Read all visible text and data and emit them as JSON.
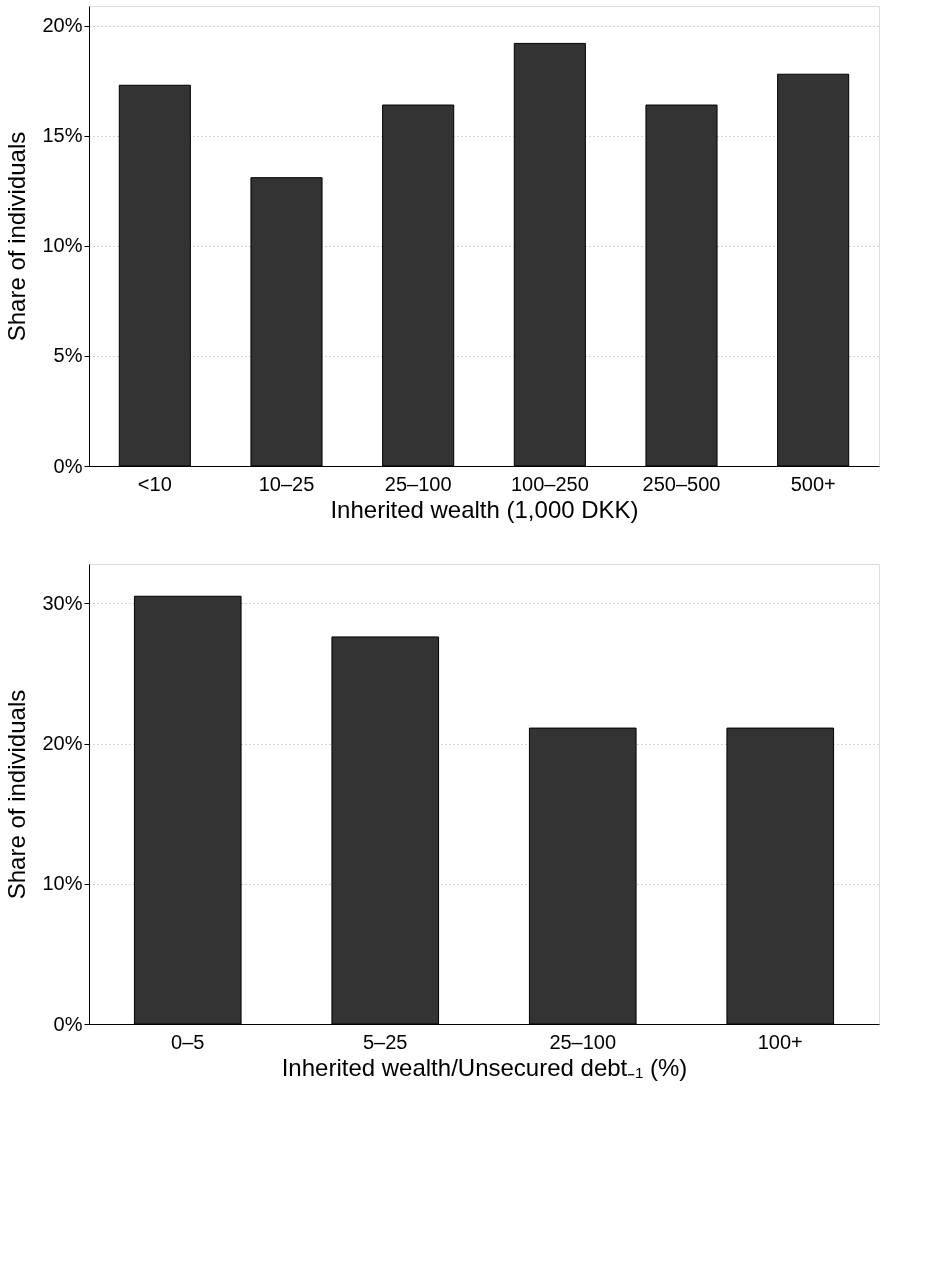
{
  "chart_data": [
    {
      "type": "bar",
      "xlabel": "Inherited wealth (1,000 DKK)",
      "ylabel": "Share of individuals",
      "categories": [
        "<10",
        "10–25",
        "25–100",
        "100–250",
        "250–500",
        "500+"
      ],
      "values": [
        17.3,
        13.1,
        16.4,
        19.2,
        16.4,
        17.8
      ],
      "color": "#333333",
      "ylim": [
        0,
        20.9
      ],
      "yticks": [
        {
          "value": 0,
          "label": "0%"
        },
        {
          "value": 5,
          "label": "5%"
        },
        {
          "value": 10,
          "label": "10%"
        },
        {
          "value": 15,
          "label": "15%"
        },
        {
          "value": 20,
          "label": "20%"
        }
      ],
      "grid": "y"
    },
    {
      "type": "bar",
      "xlabel": "Inherited wealth/Unsecured debt₋₁ (%)",
      "ylabel": "Share of individuals",
      "categories": [
        "0–5",
        "5–25",
        "25–100",
        "100+"
      ],
      "values": [
        30.5,
        27.6,
        21.1,
        21.1
      ],
      "color": "#333333",
      "ylim": [
        0,
        32.8
      ],
      "yticks": [
        {
          "value": 0,
          "label": "0%"
        },
        {
          "value": 10,
          "label": "10%"
        },
        {
          "value": 20,
          "label": "20%"
        },
        {
          "value": 30,
          "label": "30%"
        }
      ],
      "grid": "y"
    }
  ]
}
